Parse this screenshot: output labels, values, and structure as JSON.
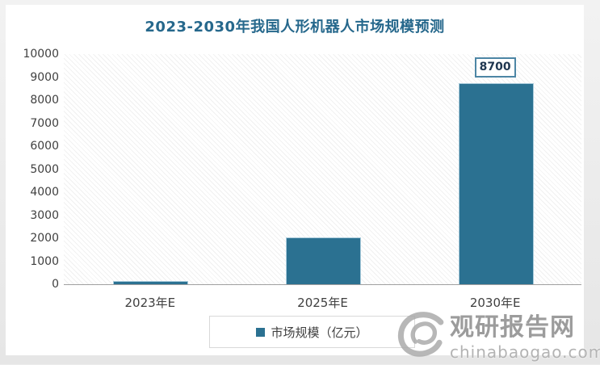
{
  "page": {
    "background": "#ececec",
    "canvas_background": "#ffffff"
  },
  "title": {
    "text": "2023-2030年我国人形机器人市场规模预测",
    "color": "#26688C"
  },
  "chart_data": {
    "type": "bar",
    "title": "2023-2030年我国人形机器人市场规模预测",
    "categories": [
      "2023年E",
      "2025年E",
      "2030年E"
    ],
    "values": [
      100,
      2000,
      8700
    ],
    "data_labels": [
      null,
      null,
      "8700"
    ],
    "xlabel": "",
    "ylabel": "",
    "ylim": [
      0,
      10000
    ],
    "y_ticks": [
      0,
      1000,
      2000,
      3000,
      4000,
      5000,
      6000,
      7000,
      8000,
      9000,
      10000
    ],
    "grid": false,
    "bar_color": "#2B7191",
    "legend": {
      "label": "市场规模（亿元）",
      "position": "bottom",
      "marker_color": "#2B7191"
    }
  },
  "watermark": {
    "logo": "swirl-logo",
    "site_name": "观研报告网",
    "domain": "chinabaogao.com",
    "color": "#9C9C9C"
  }
}
